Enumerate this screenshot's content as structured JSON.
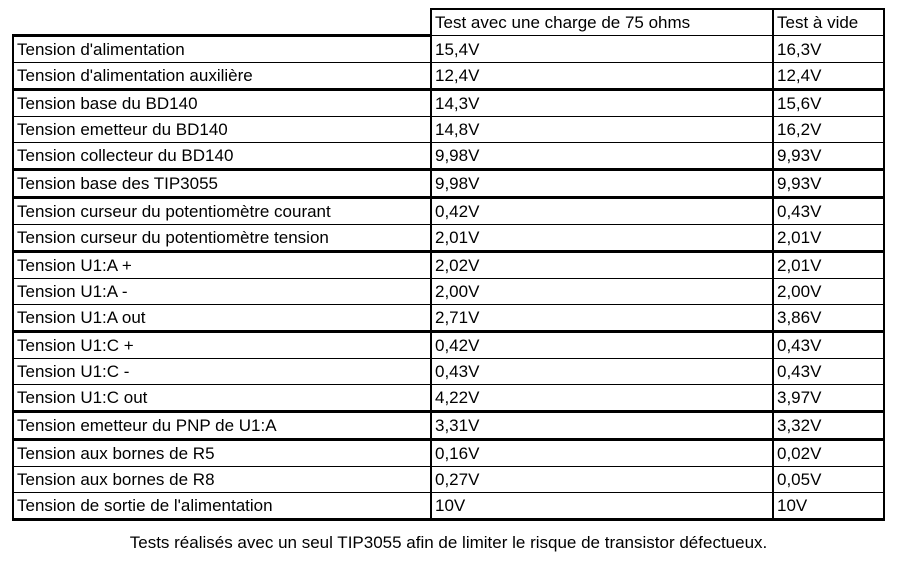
{
  "table": {
    "header": [
      "Test avec une charge de 75 ohms",
      "Test à vide"
    ],
    "rows": [
      [
        "Tension d'alimentation",
        "15,4V",
        "16,3V"
      ],
      [
        "Tension d'alimentation auxilière",
        "12,4V",
        "12,4V"
      ],
      [
        "Tension base du BD140",
        "14,3V",
        "15,6V"
      ],
      [
        "Tension emetteur du BD140",
        "14,8V",
        "16,2V"
      ],
      [
        "Tension collecteur du BD140",
        "9,98V",
        "9,93V"
      ],
      [
        "Tension base des TIP3055",
        "9,98V",
        "9,93V"
      ],
      [
        "Tension curseur du potentiomètre courant",
        "0,42V",
        "0,43V"
      ],
      [
        "Tension curseur du potentiomètre tension",
        "2,01V",
        "2,01V"
      ],
      [
        "Tension U1:A +",
        "2,02V",
        "2,01V"
      ],
      [
        "Tension U1:A -",
        "2,00V",
        "2,00V"
      ],
      [
        "Tension U1:A out",
        "2,71V",
        "3,86V"
      ],
      [
        "Tension U1:C +",
        "0,42V",
        "0,43V"
      ],
      [
        "Tension U1:C -",
        "0,43V",
        "0,43V"
      ],
      [
        "Tension U1:C out",
        "4,22V",
        "3,97V"
      ],
      [
        "Tension emetteur du PNP de U1:A",
        "3,31V",
        "3,32V"
      ],
      [
        "Tension aux bornes de R5",
        "0,16V",
        "0,02V"
      ],
      [
        "Tension aux bornes de R8",
        "0,27V",
        "0,05V"
      ],
      [
        "Tension de sortie de l'alimentation",
        "10V",
        "10V"
      ]
    ]
  },
  "footnote": "Tests réalisés avec un seul TIP3055 afin de limiter le risque de transistor défectueux."
}
